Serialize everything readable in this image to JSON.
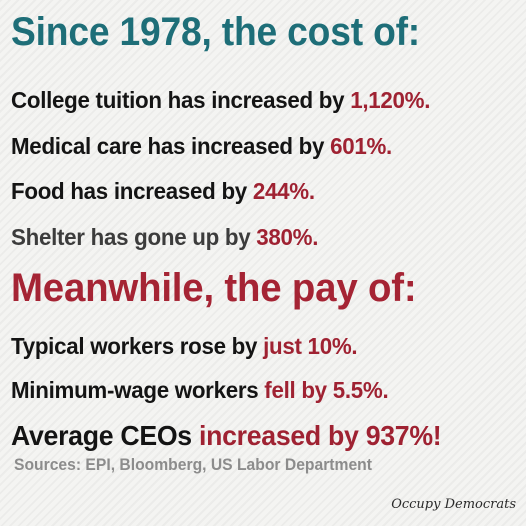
{
  "headline_cost": "Since 1978, the cost of:",
  "cost_items": [
    {
      "text": "College tuition has increased by ",
      "value": "1,120%."
    },
    {
      "text": "Medical care has increased by ",
      "value": "601%."
    },
    {
      "text": "Food has increased by ",
      "value": "244%."
    },
    {
      "text": "Shelter has gone up by ",
      "value": "380%."
    }
  ],
  "headline_pay": "Meanwhile, the pay of:",
  "pay_items": [
    {
      "text": "Typical workers rose by ",
      "value": "just 10%."
    },
    {
      "text": "Minimum-wage workers ",
      "value": "fell by 5.5%."
    },
    {
      "text": "Average CEOs ",
      "value": "increased by 937%!"
    }
  ],
  "sources": "Sources: EPI, Bloomberg, US Labor Department",
  "brand": "Occupy Democrats",
  "colors": {
    "teal_heading": "#1e6e78",
    "red_accent": "#a52434",
    "text": "#141414",
    "sources_gray": "#8c8c8c"
  }
}
